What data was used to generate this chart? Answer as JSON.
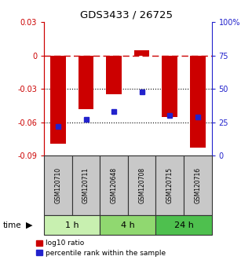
{
  "title": "GDS3433 / 26725",
  "samples": [
    "GSM120710",
    "GSM120711",
    "GSM120648",
    "GSM120708",
    "GSM120715",
    "GSM120716"
  ],
  "log10_ratio": [
    -0.079,
    -0.048,
    -0.035,
    0.005,
    -0.055,
    -0.083
  ],
  "percentile_rank": [
    22,
    27,
    33,
    48,
    30,
    29
  ],
  "groups": [
    {
      "label": "1 h",
      "indices": [
        0,
        1
      ],
      "color": "#c8f0b0"
    },
    {
      "label": "4 h",
      "indices": [
        2,
        3
      ],
      "color": "#90d870"
    },
    {
      "label": "24 h",
      "indices": [
        4,
        5
      ],
      "color": "#4ec04e"
    }
  ],
  "ylim_left": [
    -0.09,
    0.03
  ],
  "ylim_right": [
    0,
    100
  ],
  "yticks_left": [
    -0.09,
    -0.06,
    -0.03,
    0,
    0.03
  ],
  "yticks_right": [
    0,
    25,
    50,
    75,
    100
  ],
  "bar_color": "#cc0000",
  "dot_color": "#2222cc",
  "dotted_lines": [
    -0.03,
    -0.06
  ],
  "sample_box_color": "#c8c8c8",
  "legend_items": [
    "log10 ratio",
    "percentile rank within the sample"
  ]
}
